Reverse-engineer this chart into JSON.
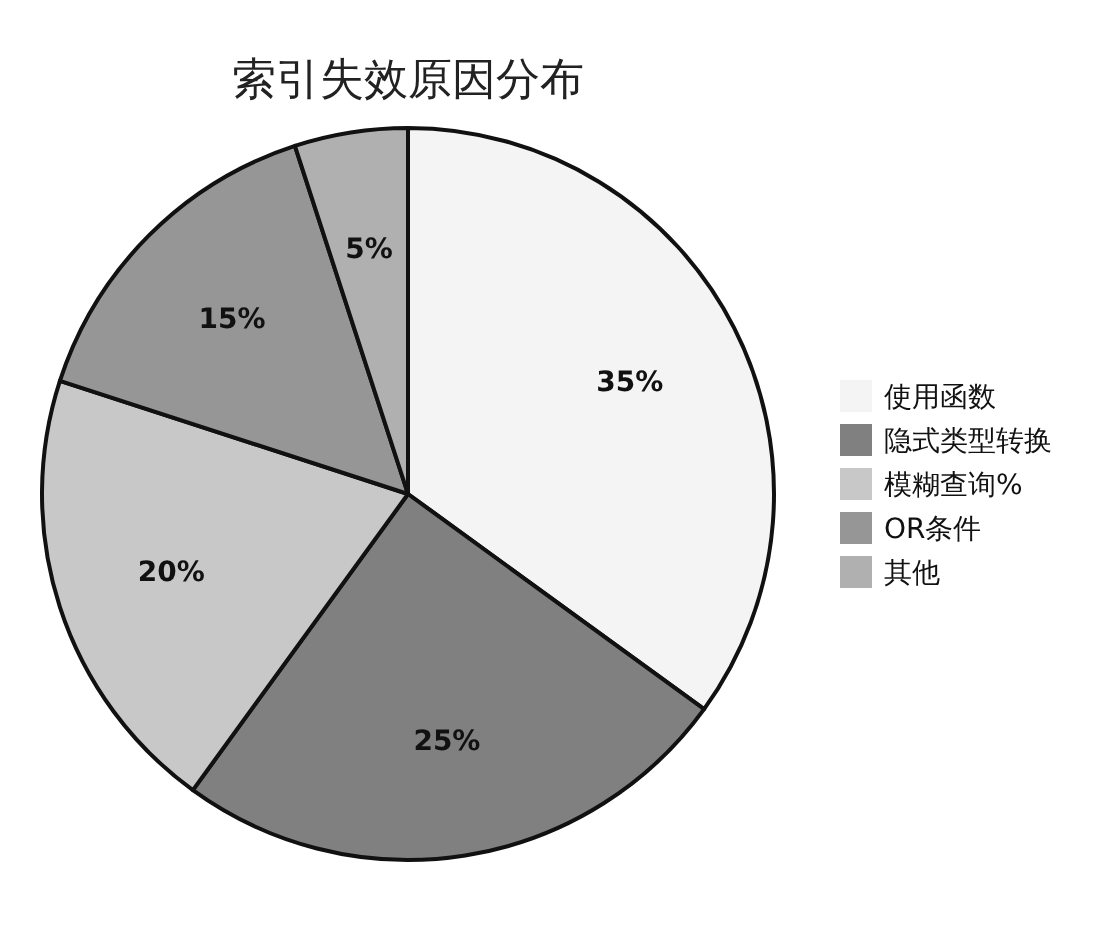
{
  "chart_data": {
    "type": "pie",
    "title": "索引失效原因分布",
    "categories": [
      "使用函数",
      "隐式类型转换",
      "模糊查询%",
      "OR条件",
      "其他"
    ],
    "values": [
      35,
      25,
      20,
      15,
      5
    ],
    "colors": [
      "#f4f4f4",
      "#808080",
      "#c8c8c8",
      "#969696",
      "#b0b0b0"
    ],
    "value_labels": [
      "35%",
      "25%",
      "20%",
      "15%",
      "5%"
    ],
    "legend": "right"
  }
}
